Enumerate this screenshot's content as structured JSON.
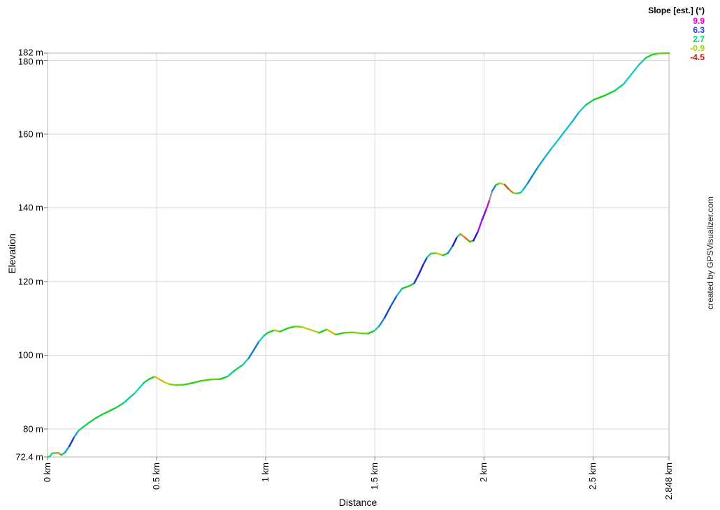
{
  "legend": {
    "title": "Slope [est.] (°)",
    "entries": [
      {
        "label": "9.9",
        "color": "#ee00cc"
      },
      {
        "label": "6.3",
        "color": "#2b44d4"
      },
      {
        "label": "2.7",
        "color": "#00dd5e"
      },
      {
        "label": "-0.9",
        "color": "#a4d400"
      },
      {
        "label": "-4.5",
        "color": "#e01010"
      }
    ]
  },
  "watermark": "created by GPSVisualizer.com",
  "axes": {
    "x_title": "Distance",
    "y_title": "Elevation",
    "x_ticks": [
      {
        "value": 0,
        "label": "0 km"
      },
      {
        "value": 0.5,
        "label": "0.5 km"
      },
      {
        "value": 1,
        "label": "1 km"
      },
      {
        "value": 1.5,
        "label": "1.5 km"
      },
      {
        "value": 2,
        "label": "2 km"
      },
      {
        "value": 2.5,
        "label": "2.5 km"
      },
      {
        "value": 2.848,
        "label": "2.848 km"
      }
    ],
    "y_ticks": [
      {
        "value": 72.4,
        "label": "72.4 m"
      },
      {
        "value": 80,
        "label": "80 m"
      },
      {
        "value": 100,
        "label": "100 m"
      },
      {
        "value": 120,
        "label": "120 m"
      },
      {
        "value": 140,
        "label": "140 m"
      },
      {
        "value": 160,
        "label": "160 m"
      },
      {
        "value": 180,
        "label": "180 m"
      },
      {
        "value": 182,
        "label": "182 m"
      }
    ]
  },
  "chart_data": {
    "type": "line",
    "title": "",
    "xlabel": "Distance",
    "ylabel": "Elevation",
    "x_unit": "km",
    "y_unit": "m",
    "xlim": [
      0,
      2.848
    ],
    "ylim": [
      72.4,
      182
    ],
    "grid": true,
    "legend_position": "top-right",
    "color_encoding": {
      "field": "slope_deg",
      "scale_min": -4.5,
      "scale_max": 9.9,
      "hue_min": 0,
      "hue_max": 300,
      "overflow_color": "#999999",
      "legend_stops": [
        9.9,
        6.3,
        2.7,
        -0.9,
        -4.5
      ]
    },
    "points": [
      [
        0.0,
        72.4
      ],
      [
        0.01,
        72.5
      ],
      [
        0.022,
        73.4
      ],
      [
        0.05,
        73.5
      ],
      [
        0.063,
        72.9
      ],
      [
        0.08,
        73.6
      ],
      [
        0.1,
        75.3
      ],
      [
        0.122,
        77.8
      ],
      [
        0.142,
        79.5
      ],
      [
        0.163,
        80.5
      ],
      [
        0.19,
        81.7
      ],
      [
        0.22,
        82.9
      ],
      [
        0.25,
        83.9
      ],
      [
        0.285,
        84.9
      ],
      [
        0.315,
        85.8
      ],
      [
        0.35,
        87.1
      ],
      [
        0.378,
        88.6
      ],
      [
        0.4,
        89.7
      ],
      [
        0.422,
        91.2
      ],
      [
        0.443,
        92.6
      ],
      [
        0.465,
        93.5
      ],
      [
        0.49,
        94.2
      ],
      [
        0.512,
        93.5
      ],
      [
        0.535,
        92.7
      ],
      [
        0.56,
        92.1
      ],
      [
        0.59,
        91.9
      ],
      [
        0.625,
        92.0
      ],
      [
        0.66,
        92.4
      ],
      [
        0.7,
        93.0
      ],
      [
        0.745,
        93.4
      ],
      [
        0.79,
        93.5
      ],
      [
        0.825,
        94.2
      ],
      [
        0.858,
        95.9
      ],
      [
        0.895,
        97.4
      ],
      [
        0.922,
        99.2
      ],
      [
        0.945,
        101.4
      ],
      [
        0.97,
        103.8
      ],
      [
        0.992,
        105.3
      ],
      [
        1.01,
        106.1
      ],
      [
        1.04,
        106.8
      ],
      [
        1.065,
        106.4
      ],
      [
        1.1,
        107.3
      ],
      [
        1.135,
        107.8
      ],
      [
        1.165,
        107.7
      ],
      [
        1.2,
        107.0
      ],
      [
        1.245,
        106.1
      ],
      [
        1.28,
        107.0
      ],
      [
        1.32,
        105.6
      ],
      [
        1.36,
        106.1
      ],
      [
        1.4,
        106.2
      ],
      [
        1.44,
        105.9
      ],
      [
        1.47,
        105.9
      ],
      [
        1.497,
        106.6
      ],
      [
        1.52,
        107.9
      ],
      [
        1.545,
        110.2
      ],
      [
        1.572,
        113.2
      ],
      [
        1.6,
        116.1
      ],
      [
        1.625,
        118.1
      ],
      [
        1.658,
        118.8
      ],
      [
        1.68,
        119.5
      ],
      [
        1.702,
        122.0
      ],
      [
        1.722,
        124.6
      ],
      [
        1.74,
        126.6
      ],
      [
        1.757,
        127.6
      ],
      [
        1.782,
        127.7
      ],
      [
        1.812,
        127.1
      ],
      [
        1.835,
        127.7
      ],
      [
        1.857,
        129.7
      ],
      [
        1.877,
        132.1
      ],
      [
        1.892,
        132.9
      ],
      [
        1.912,
        132.0
      ],
      [
        1.935,
        130.8
      ],
      [
        1.952,
        131.1
      ],
      [
        1.972,
        133.5
      ],
      [
        1.992,
        136.8
      ],
      [
        2.012,
        139.8
      ],
      [
        2.026,
        142.2
      ],
      [
        2.038,
        144.6
      ],
      [
        2.055,
        146.2
      ],
      [
        2.072,
        146.7
      ],
      [
        2.095,
        146.3
      ],
      [
        2.115,
        145.0
      ],
      [
        2.135,
        144.0
      ],
      [
        2.152,
        143.9
      ],
      [
        2.168,
        144.1
      ],
      [
        2.182,
        145.1
      ],
      [
        2.202,
        146.8
      ],
      [
        2.222,
        148.7
      ],
      [
        2.248,
        151.1
      ],
      [
        2.278,
        153.6
      ],
      [
        2.308,
        156.0
      ],
      [
        2.34,
        158.4
      ],
      [
        2.372,
        160.9
      ],
      [
        2.402,
        163.2
      ],
      [
        2.435,
        165.9
      ],
      [
        2.468,
        168.0
      ],
      [
        2.505,
        169.4
      ],
      [
        2.55,
        170.4
      ],
      [
        2.6,
        171.8
      ],
      [
        2.64,
        173.6
      ],
      [
        2.675,
        176.2
      ],
      [
        2.71,
        178.8
      ],
      [
        2.742,
        180.7
      ],
      [
        2.768,
        181.5
      ],
      [
        2.795,
        181.9
      ],
      [
        2.848,
        182.0
      ]
    ]
  }
}
